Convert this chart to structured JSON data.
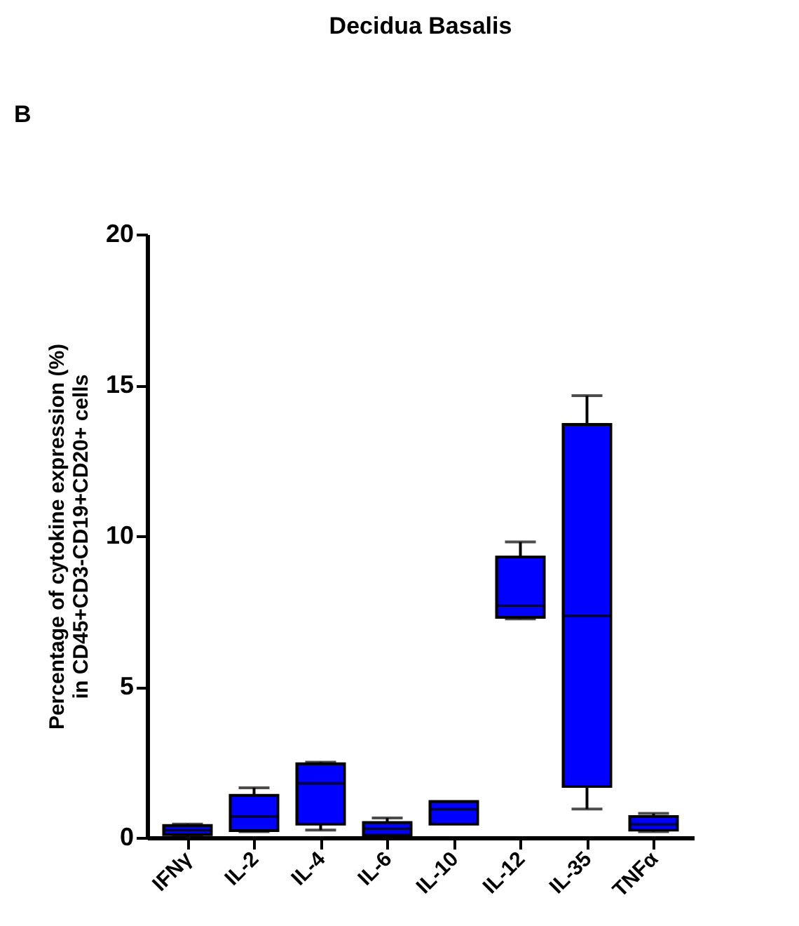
{
  "chart_data": {
    "type": "box",
    "title": "Decidua Basalis",
    "annotations": [
      "B"
    ],
    "ylabel": "Percentage of cytokine expression (%)\nin CD45+CD3-CD19+CD20+ cells",
    "categories": [
      "IFNγ",
      "IL-2",
      "IL-4",
      "IL-6",
      "IL-10",
      "IL-12",
      "IL-35",
      "TNFα"
    ],
    "color": "#0000ff",
    "boxes": [
      {
        "low": 0.05,
        "q1": 0.1,
        "median": 0.25,
        "q3": 0.4,
        "high": 0.45
      },
      {
        "low": 0.2,
        "q1": 0.23,
        "median": 0.7,
        "q3": 1.4,
        "high": 1.65
      },
      {
        "low": 0.25,
        "q1": 0.45,
        "median": 1.8,
        "q3": 2.45,
        "high": 2.5
      },
      {
        "low": 0.08,
        "q1": 0.08,
        "median": 0.3,
        "q3": 0.5,
        "high": 0.65
      },
      {
        "low": 0.45,
        "q1": 0.45,
        "median": 0.95,
        "q3": 1.2,
        "high": 1.2
      },
      {
        "low": 7.25,
        "q1": 7.3,
        "median": 7.7,
        "q3": 9.3,
        "high": 9.8
      },
      {
        "low": 0.95,
        "q1": 1.7,
        "median": 7.35,
        "q3": 13.7,
        "high": 14.65
      },
      {
        "low": 0.2,
        "q1": 0.25,
        "median": 0.45,
        "q3": 0.7,
        "high": 0.8
      }
    ],
    "ylim": [
      0,
      20
    ],
    "yticks": [
      0,
      5,
      10,
      15,
      20
    ],
    "grid": false
  }
}
